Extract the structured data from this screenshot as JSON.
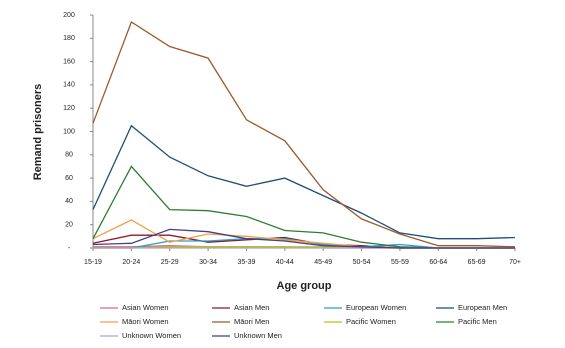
{
  "chart_data": {
    "type": "line",
    "x_label": "Age group",
    "y_label": "Remand prisoners",
    "categories": [
      "15-19",
      "20-24",
      "25-29",
      "30-34",
      "35-39",
      "40-44",
      "45-49",
      "50-54",
      "55-59",
      "60-64",
      "65-69",
      "70+"
    ],
    "ylim": [
      0,
      200
    ],
    "yticks": [
      {
        "value": 0,
        "label": "-"
      },
      20,
      40,
      60,
      80,
      100,
      120,
      140,
      160,
      180,
      200
    ],
    "series": [
      {
        "name": "Asian Women",
        "color": "#e06a8a",
        "values": [
          1,
          1,
          2,
          1,
          1,
          1,
          0,
          0,
          0,
          0,
          0,
          0
        ]
      },
      {
        "name": "Asian Men",
        "color": "#8b1a2a",
        "values": [
          4,
          11,
          11,
          5,
          7,
          9,
          3,
          2,
          0,
          0,
          0,
          0
        ]
      },
      {
        "name": "European Women",
        "color": "#2aa0c8",
        "values": [
          0,
          0,
          6,
          6,
          8,
          8,
          3,
          1,
          3,
          0,
          0,
          0
        ]
      },
      {
        "name": "European Men",
        "color": "#1f4e79",
        "values": [
          33,
          105,
          78,
          62,
          53,
          60,
          45,
          30,
          13,
          8,
          8,
          9
        ]
      },
      {
        "name": "Māori Women",
        "color": "#f0a040",
        "values": [
          8,
          24,
          5,
          12,
          10,
          7,
          4,
          1,
          0,
          0,
          0,
          0
        ]
      },
      {
        "name": "Māori Men",
        "color": "#9c5a2c",
        "values": [
          107,
          194,
          173,
          163,
          110,
          92,
          50,
          25,
          12,
          2,
          2,
          1
        ]
      },
      {
        "name": "Pacific Women",
        "color": "#b8c020",
        "values": [
          0,
          0,
          1,
          1,
          1,
          1,
          1,
          0,
          0,
          0,
          0,
          0
        ]
      },
      {
        "name": "Pacific Men",
        "color": "#2e7d32",
        "values": [
          8,
          70,
          33,
          32,
          27,
          15,
          13,
          5,
          1,
          0,
          0,
          0
        ]
      },
      {
        "name": "Unknown Women",
        "color": "#a8a8c8",
        "values": [
          0,
          0,
          0,
          0,
          0,
          0,
          0,
          0,
          0,
          0,
          0,
          0
        ]
      },
      {
        "name": "Unknown Men",
        "color": "#4b3b8b",
        "values": [
          3,
          4,
          16,
          14,
          8,
          6,
          2,
          1,
          0,
          0,
          0,
          0
        ]
      }
    ]
  }
}
